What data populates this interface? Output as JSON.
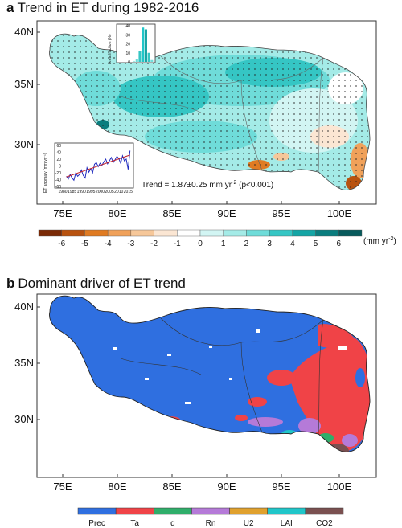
{
  "panel_a": {
    "letter": "a",
    "title": "Trend in ET during 1982-2016",
    "lat_labels": [
      "40N",
      "35N",
      "30N"
    ],
    "lon_labels": [
      "75E",
      "80E",
      "85E",
      "90E",
      "95E",
      "100E"
    ],
    "trend_text": "Trend = 1.87±0.25 mm yr",
    "trend_sup": "-2",
    "trend_p": " (p<0.001)",
    "hist_ylabel": "Area fraction (%)",
    "hist_yticks": [
      "40",
      "30",
      "20",
      "10",
      "0"
    ],
    "ts_ylabel": "ET anomaly (mm yr⁻¹)",
    "ts_yticks": [
      "60",
      "40",
      "20",
      "0",
      "-20",
      "-40",
      "-60"
    ],
    "ts_xticks": [
      "1980",
      "1985",
      "1990",
      "1995",
      "2000",
      "2005",
      "2010",
      "2015"
    ],
    "colorbar_labels": [
      "-6",
      "-5",
      "-4",
      "-3",
      "-2",
      "-1",
      "0",
      "1",
      "2",
      "3",
      "4",
      "5",
      "6"
    ],
    "colorbar_unit": "(mm yr",
    "colorbar_unit_sup": "-2",
    "colorbar_colors": [
      "#7a2a06",
      "#b8520f",
      "#e07b22",
      "#f0a15a",
      "#f6c799",
      "#fbe6d3",
      "#ffffff",
      "#d2f5f3",
      "#a4ebe7",
      "#6fdcd9",
      "#35c6c4",
      "#14a5a5",
      "#0a7d7e",
      "#075a5c"
    ]
  },
  "panel_b": {
    "letter": "b",
    "title": "Dominant driver of ET trend",
    "lat_labels": [
      "40N",
      "35N",
      "30N"
    ],
    "lon_labels": [
      "75E",
      "80E",
      "85E",
      "90E",
      "95E",
      "100E"
    ],
    "legend": [
      {
        "label": "Prec",
        "color": "#2f6fe0"
      },
      {
        "label": "Ta",
        "color": "#f04347"
      },
      {
        "label": "q",
        "color": "#2fae6a"
      },
      {
        "label": "Rn",
        "color": "#b57ad8"
      },
      {
        "label": "U2",
        "color": "#e0a12e"
      },
      {
        "label": "LAI",
        "color": "#20c6c9"
      },
      {
        "label": "CO2",
        "color": "#7a5050"
      }
    ]
  },
  "histogram": {
    "type": "bar",
    "values": [
      1,
      3,
      12,
      38,
      36,
      10,
      2
    ]
  },
  "timeseries": {
    "type": "line",
    "x": [
      1982,
      1983,
      1984,
      1985,
      1986,
      1987,
      1988,
      1989,
      1990,
      1991,
      1992,
      1993,
      1994,
      1995,
      1996,
      1997,
      1998,
      1999,
      2000,
      2001,
      2002,
      2003,
      2004,
      2005,
      2006,
      2007,
      2008,
      2009,
      2010,
      2011,
      2012,
      2013,
      2014,
      2015,
      2016
    ],
    "y": [
      -30,
      -38,
      -25,
      -35,
      -42,
      -20,
      -30,
      -25,
      -12,
      -28,
      -35,
      -5,
      -18,
      -8,
      -20,
      5,
      10,
      -2,
      8,
      2,
      12,
      20,
      6,
      15,
      25,
      10,
      18,
      28,
      22,
      8,
      30,
      15,
      20,
      -10,
      45
    ],
    "trend_y": [
      -32,
      32
    ],
    "colors": {
      "line": "#1f2bbf",
      "trend": "#c0202a"
    }
  }
}
